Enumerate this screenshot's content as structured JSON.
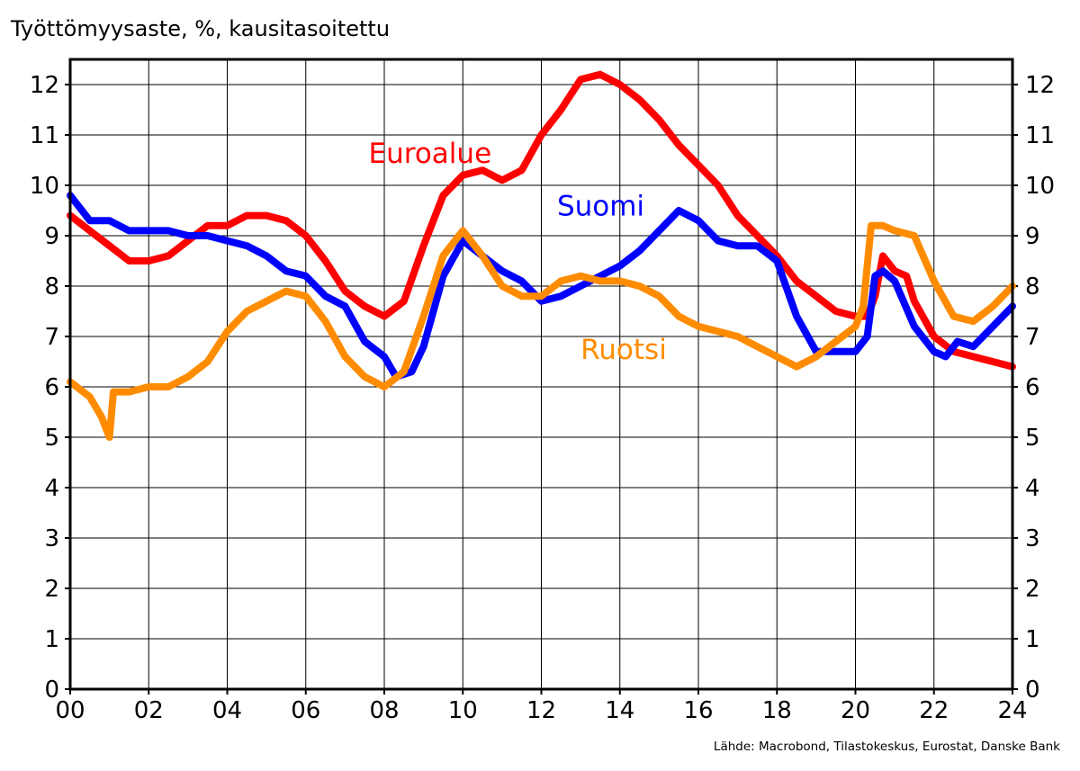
{
  "chart_data": {
    "type": "line",
    "title": "Työttömyysaste, %, kausitasoitettu",
    "source": "Lähde: Macrobond, Tilastokeskus, Eurostat, Danske Bank",
    "xlabel": "",
    "ylabel": "",
    "xlim": [
      2000,
      2024
    ],
    "ylim": [
      0,
      12.5
    ],
    "grid": true,
    "x_ticks": [
      2000,
      2002,
      2004,
      2006,
      2008,
      2010,
      2012,
      2014,
      2016,
      2018,
      2020,
      2022,
      2024
    ],
    "x_tick_labels": [
      "00",
      "02",
      "04",
      "06",
      "08",
      "10",
      "12",
      "14",
      "16",
      "18",
      "20",
      "22",
      "24"
    ],
    "y_ticks": [
      0,
      1,
      2,
      3,
      4,
      5,
      6,
      7,
      8,
      9,
      10,
      11,
      12
    ],
    "y_tick_labels": [
      "0",
      "1",
      "2",
      "3",
      "4",
      "5",
      "6",
      "7",
      "8",
      "9",
      "10",
      "11",
      "12"
    ],
    "series": [
      {
        "name": "Euroalue",
        "color": "#FF0000",
        "x": [
          2000,
          2000.5,
          2001,
          2001.5,
          2002,
          2002.5,
          2003,
          2003.5,
          2004,
          2004.5,
          2005,
          2005.5,
          2006,
          2006.5,
          2007,
          2007.5,
          2008,
          2008.5,
          2009,
          2009.5,
          2010,
          2010.5,
          2011,
          2011.5,
          2012,
          2012.5,
          2013,
          2013.5,
          2014,
          2014.5,
          2015,
          2015.5,
          2016,
          2016.5,
          2017,
          2017.5,
          2018,
          2018.5,
          2019,
          2019.5,
          2020,
          2020.3,
          2020.5,
          2020.7,
          2021,
          2021.3,
          2021.5,
          2022,
          2022.5,
          2023,
          2023.5,
          2024
        ],
        "values": [
          9.4,
          9.1,
          8.8,
          8.5,
          8.5,
          8.6,
          8.9,
          9.2,
          9.2,
          9.4,
          9.4,
          9.3,
          9.0,
          8.5,
          7.9,
          7.6,
          7.4,
          7.7,
          8.8,
          9.8,
          10.2,
          10.3,
          10.1,
          10.3,
          11.0,
          11.5,
          12.1,
          12.2,
          12.0,
          11.7,
          11.3,
          10.8,
          10.4,
          10.0,
          9.4,
          9.0,
          8.6,
          8.1,
          7.8,
          7.5,
          7.4,
          7.4,
          7.8,
          8.6,
          8.3,
          8.2,
          7.7,
          7.0,
          6.7,
          6.6,
          6.5,
          6.4
        ]
      },
      {
        "name": "Suomi",
        "color": "#0000FF",
        "x": [
          2000,
          2000.5,
          2001,
          2001.5,
          2002,
          2002.5,
          2003,
          2003.5,
          2004,
          2004.5,
          2005,
          2005.5,
          2006,
          2006.5,
          2007,
          2007.5,
          2008,
          2008.3,
          2008.7,
          2009,
          2009.5,
          2010,
          2010.5,
          2011,
          2011.5,
          2012,
          2012.5,
          2013,
          2013.5,
          2014,
          2014.5,
          2015,
          2015.5,
          2016,
          2016.5,
          2017,
          2017.5,
          2018,
          2018.5,
          2019,
          2019.5,
          2020,
          2020.3,
          2020.5,
          2020.7,
          2021,
          2021.5,
          2022,
          2022.3,
          2022.6,
          2023,
          2023.5,
          2024
        ],
        "values": [
          9.8,
          9.3,
          9.3,
          9.1,
          9.1,
          9.1,
          9.0,
          9.0,
          8.9,
          8.8,
          8.6,
          8.3,
          8.2,
          7.8,
          7.6,
          6.9,
          6.6,
          6.2,
          6.3,
          6.8,
          8.2,
          8.9,
          8.6,
          8.3,
          8.1,
          7.7,
          7.8,
          8.0,
          8.2,
          8.4,
          8.7,
          9.1,
          9.5,
          9.3,
          8.9,
          8.8,
          8.8,
          8.5,
          7.4,
          6.7,
          6.7,
          6.7,
          7.0,
          8.2,
          8.3,
          8.1,
          7.2,
          6.7,
          6.6,
          6.9,
          6.8,
          7.2,
          7.6
        ]
      },
      {
        "name": "Ruotsi",
        "color": "#FF8C00",
        "x": [
          2000,
          2000.5,
          2000.8,
          2001,
          2001.1,
          2001.5,
          2002,
          2002.5,
          2003,
          2003.5,
          2004,
          2004.5,
          2005,
          2005.5,
          2006,
          2006.5,
          2007,
          2007.5,
          2008,
          2008.5,
          2009,
          2009.5,
          2010,
          2010.5,
          2011,
          2011.5,
          2012,
          2012.5,
          2013,
          2013.5,
          2014,
          2014.5,
          2015,
          2015.5,
          2016,
          2016.5,
          2017,
          2017.5,
          2018,
          2018.5,
          2019,
          2019.5,
          2020,
          2020.2,
          2020.4,
          2020.7,
          2021,
          2021.5,
          2022,
          2022.5,
          2023,
          2023.5,
          2024
        ],
        "values": [
          6.1,
          5.8,
          5.4,
          5.0,
          5.9,
          5.9,
          6.0,
          6.0,
          6.2,
          6.5,
          7.1,
          7.5,
          7.7,
          7.9,
          7.8,
          7.3,
          6.6,
          6.2,
          6.0,
          6.3,
          7.4,
          8.6,
          9.1,
          8.6,
          8.0,
          7.8,
          7.8,
          8.1,
          8.2,
          8.1,
          8.1,
          8.0,
          7.8,
          7.4,
          7.2,
          7.1,
          7.0,
          6.8,
          6.6,
          6.4,
          6.6,
          6.9,
          7.2,
          7.6,
          9.2,
          9.2,
          9.1,
          9.0,
          8.1,
          7.4,
          7.3,
          7.6,
          8.0
        ]
      }
    ],
    "annotations": [
      {
        "text": "Euroalue",
        "series": "Euroalue",
        "x": 2007.6,
        "y": 10.45
      },
      {
        "text": "Suomi",
        "series": "Suomi",
        "x": 2012.4,
        "y": 9.4
      },
      {
        "text": "Ruotsi",
        "series": "Ruotsi",
        "x": 2013.0,
        "y": 6.55
      }
    ]
  }
}
